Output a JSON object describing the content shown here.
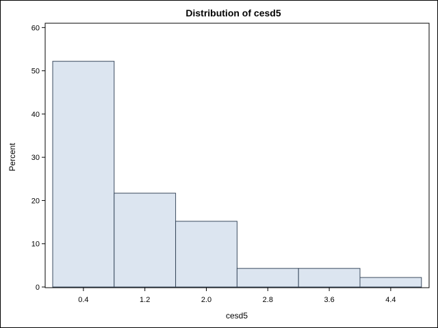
{
  "chart_data": {
    "type": "bar",
    "title": "Distribution of cesd5",
    "xlabel": "cesd5",
    "ylabel": "Percent",
    "categories": [
      "0.4",
      "1.2",
      "2.0",
      "2.8",
      "3.6",
      "4.4"
    ],
    "values": [
      52.2,
      21.7,
      15.2,
      4.3,
      4.3,
      2.2
    ],
    "y_ticks": [
      0,
      10,
      20,
      30,
      40,
      50,
      60
    ],
    "ylim": [
      0,
      61
    ],
    "grid": false,
    "bar_fill": "#dce5f0",
    "bar_stroke": "#3a4a5e"
  }
}
